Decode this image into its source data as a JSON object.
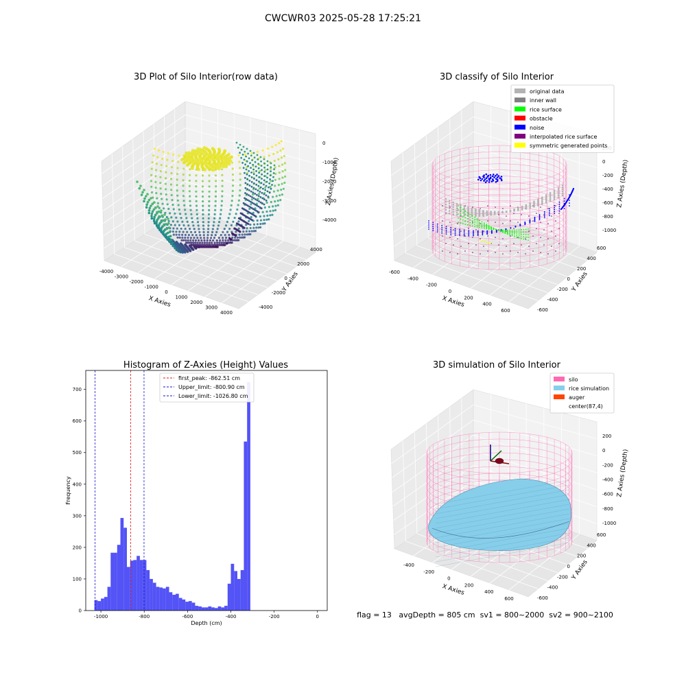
{
  "suptitle": "CWCWR03 2025-05-28 17:25:21",
  "footer": "flag = 13   avgDepth = 805 cm  sv1 = 800~2000  sv2 = 900~2100",
  "colors": {
    "hist_bar": "#4a4af5",
    "peak_line": "#e01010",
    "limit_line": "#1010d0",
    "silo": "#ff69b4",
    "rice": "#87ceeb",
    "auger": "#ff4500",
    "gray_light": "#b3b3b3",
    "gray_dark": "#808080",
    "green": "#00ff00",
    "red": "#ff0000",
    "blue": "#0000ff",
    "purple": "#800080",
    "yellow": "#ffff00"
  },
  "panels": {
    "raw": {
      "title": "3D Plot of Silo Interior(row data)",
      "xlabel": "X Axies",
      "ylabel": "Y Axies",
      "zlabel": "Z Axies (Depth)",
      "xticks": [
        "-4000",
        "-3000",
        "-2000",
        "-1000",
        "0",
        "1000",
        "2000",
        "3000",
        "4000"
      ],
      "yticks": [
        "-4000",
        "-2000",
        "0",
        "2000",
        "4000"
      ],
      "zticks": [
        "0",
        "-1000",
        "-2000",
        "-3000",
        "-4000"
      ]
    },
    "classify": {
      "title": "3D classify of Silo Interior",
      "xlabel": "X Axies",
      "ylabel": "Y Axies",
      "zlabel": "Z Axies (Depth)",
      "xticks": [
        "-600",
        "-400",
        "-200",
        "0",
        "200",
        "400",
        "600"
      ],
      "yticks": [
        "-600",
        "-400",
        "-200",
        "0",
        "200",
        "400",
        "600"
      ],
      "zticks": [
        "200",
        "0",
        "-200",
        "-400",
        "-600",
        "-800",
        "-1000"
      ],
      "legend": [
        {
          "label": "original data",
          "color": "#b3b3b3"
        },
        {
          "label": "inner wall",
          "color": "#808080"
        },
        {
          "label": "rice surface",
          "color": "#00ff00"
        },
        {
          "label": "obstacle",
          "color": "#ff0000"
        },
        {
          "label": "noise",
          "color": "#0000ff"
        },
        {
          "label": "interpolated rice surface",
          "color": "#800080"
        },
        {
          "label": "symmetric generated points",
          "color": "#ffff00"
        }
      ]
    },
    "simulation": {
      "title": "3D simulation of Silo Interior",
      "xlabel": "X Axies",
      "ylabel": "Y Axies",
      "zlabel": "Z Axies (Depth)",
      "xticks": [
        "-400",
        "-200",
        "0",
        "200",
        "400",
        "600"
      ],
      "yticks": [
        "-600",
        "-400",
        "-200",
        "0",
        "200",
        "400",
        "600"
      ],
      "zticks": [
        "200",
        "0",
        "-200",
        "-400",
        "-600",
        "-800",
        "-1000"
      ],
      "legend": [
        {
          "label": "silo",
          "color": "#ff69b4"
        },
        {
          "label": "rice simulation",
          "color": "#87ceeb"
        },
        {
          "label": "auger",
          "color": "#ff4500"
        },
        {
          "label": "center(87,4)",
          "color": ""
        }
      ]
    }
  },
  "chart_data": {
    "type": "bar",
    "title": "Histogram of Z-Axies (Height) Values",
    "xlabel": "Depth (cm)",
    "ylabel": "Frequency",
    "xlim": [
      -1070,
      45
    ],
    "ylim": [
      0,
      760
    ],
    "xticks": [
      -1000,
      -800,
      -600,
      -400,
      -200,
      0
    ],
    "yticks": [
      0,
      100,
      200,
      300,
      400,
      500,
      600,
      700
    ],
    "bin_start": -1030,
    "bin_width": 15,
    "values": [
      33,
      30,
      38,
      43,
      75,
      183,
      183,
      208,
      293,
      262,
      138,
      158,
      160,
      173,
      160,
      160,
      128,
      100,
      88,
      75,
      73,
      70,
      75,
      58,
      50,
      53,
      40,
      35,
      28,
      30,
      25,
      15,
      13,
      10,
      10,
      13,
      10,
      8,
      13,
      10,
      15,
      85,
      148,
      125,
      100,
      128,
      535,
      723
    ],
    "vlines": [
      {
        "label": "first_peak: -862.51 cm",
        "x": -862.51,
        "color": "#e01010"
      },
      {
        "label": "Upper_limit: -800.90 cm",
        "x": -800.9,
        "color": "#1010d0"
      },
      {
        "label": "Lower_limit: -1026.80 cm",
        "x": -1026.8,
        "color": "#1010d0"
      }
    ]
  }
}
